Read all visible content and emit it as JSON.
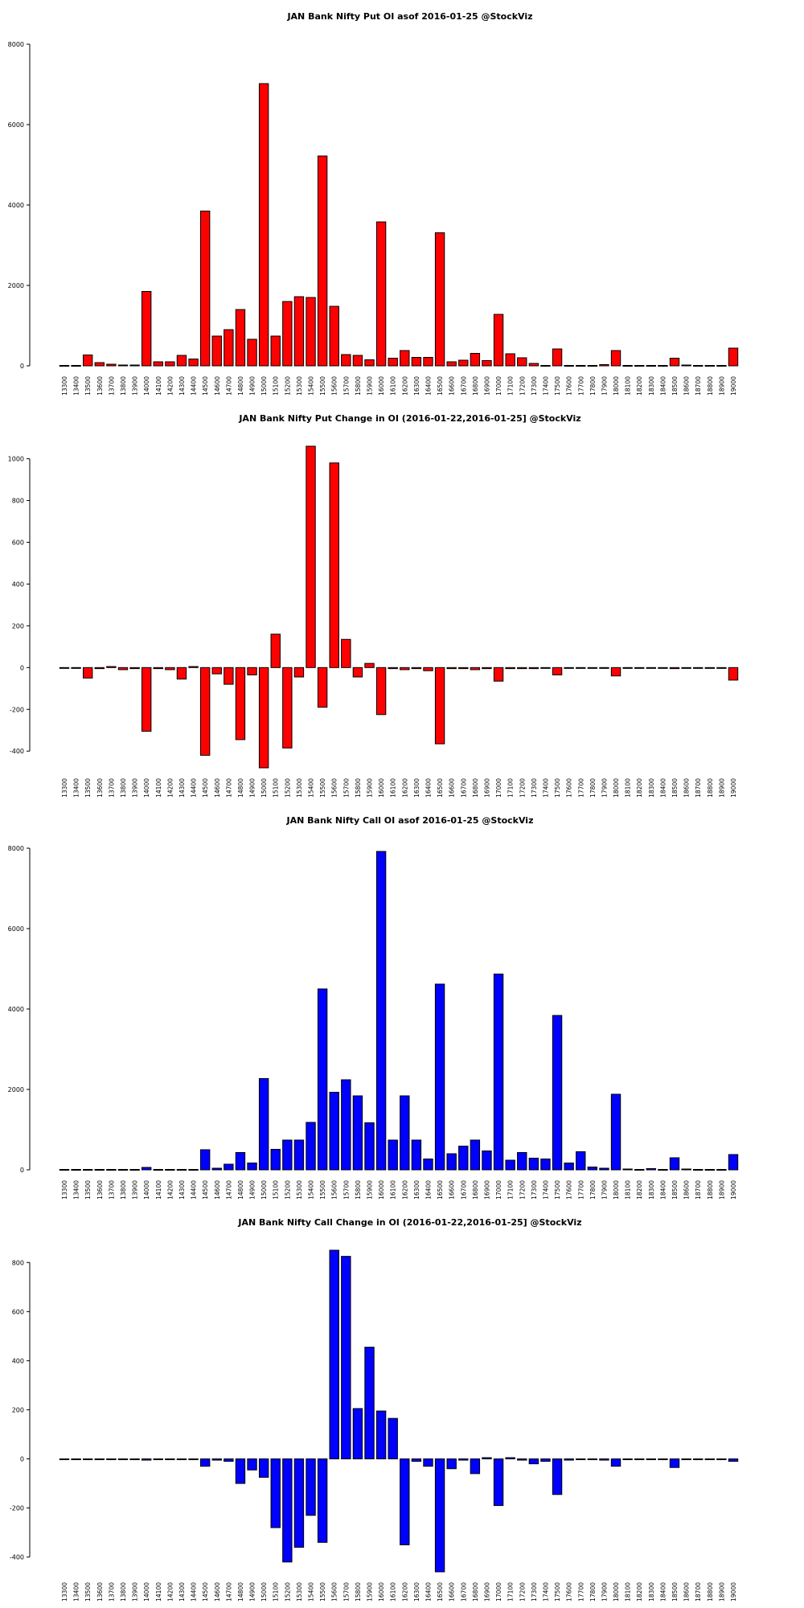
{
  "chart_data": [
    {
      "type": "bar",
      "title": "JAN Bank Nifty Put OI asof 2016-01-25 @StockViz",
      "color": "#ff0000",
      "categories": [
        "13300",
        "13400",
        "13500",
        "13600",
        "13700",
        "13800",
        "13900",
        "14000",
        "14100",
        "14200",
        "14300",
        "14400",
        "14500",
        "14600",
        "14700",
        "14800",
        "14900",
        "15000",
        "15100",
        "15200",
        "15300",
        "15400",
        "15500",
        "15600",
        "15700",
        "15800",
        "15900",
        "16000",
        "16100",
        "16200",
        "16300",
        "16400",
        "16500",
        "16600",
        "16700",
        "16800",
        "16900",
        "17000",
        "17100",
        "17200",
        "17300",
        "17400",
        "17500",
        "17600",
        "17700",
        "17800",
        "17900",
        "18000",
        "18100",
        "18200",
        "18300",
        "18400",
        "18500",
        "18600",
        "18700",
        "18800",
        "18900",
        "19000"
      ],
      "values": [
        10,
        10,
        270,
        80,
        40,
        20,
        20,
        1850,
        100,
        100,
        260,
        170,
        3850,
        740,
        900,
        1400,
        660,
        7020,
        740,
        1600,
        1720,
        1700,
        5220,
        1480,
        280,
        260,
        150,
        3580,
        190,
        380,
        210,
        210,
        3310,
        100,
        140,
        310,
        130,
        1280,
        300,
        200,
        60,
        10,
        420,
        10,
        10,
        10,
        30,
        380,
        10,
        10,
        10,
        10,
        190,
        20,
        10,
        10,
        10,
        440
      ],
      "yticks": [
        0,
        2000,
        4000,
        6000,
        8000
      ],
      "ylim": [
        0,
        8000
      ]
    },
    {
      "type": "bar",
      "title": "JAN Bank Nifty Put Change in OI (2016-01-22,2016-01-25] @StockViz",
      "color": "#ff0000",
      "categories": [
        "13300",
        "13400",
        "13500",
        "13600",
        "13700",
        "13800",
        "13900",
        "14000",
        "14100",
        "14200",
        "14300",
        "14400",
        "14500",
        "14600",
        "14700",
        "14800",
        "14900",
        "15000",
        "15100",
        "15200",
        "15300",
        "15400",
        "15500",
        "15600",
        "15700",
        "15800",
        "15900",
        "16000",
        "16100",
        "16200",
        "16300",
        "16400",
        "16500",
        "16600",
        "16700",
        "16800",
        "16900",
        "17000",
        "17100",
        "17200",
        "17300",
        "17400",
        "17500",
        "17600",
        "17700",
        "17800",
        "17900",
        "18000",
        "18100",
        "18200",
        "18300",
        "18400",
        "18500",
        "18600",
        "18700",
        "18800",
        "18900",
        "19000"
      ],
      "values": [
        0,
        0,
        -50,
        -5,
        5,
        -10,
        -5,
        -305,
        -5,
        -10,
        -55,
        5,
        -420,
        -30,
        -80,
        -345,
        -35,
        -480,
        160,
        -385,
        -45,
        1060,
        -190,
        980,
        135,
        -45,
        20,
        -225,
        -5,
        -10,
        -5,
        -15,
        -365,
        -5,
        -5,
        -10,
        -5,
        -65,
        -5,
        -5,
        -5,
        0,
        -35,
        0,
        0,
        0,
        0,
        -40,
        0,
        0,
        0,
        0,
        -5,
        0,
        0,
        0,
        0,
        -60
      ],
      "yticks": [
        -400,
        -200,
        0,
        200,
        400,
        600,
        800,
        1000
      ],
      "ylim": [
        -480,
        1060
      ]
    },
    {
      "type": "bar",
      "title": "JAN Bank Nifty Call OI asof 2016-01-25 @StockViz",
      "color": "#0000ff",
      "categories": [
        "13300",
        "13400",
        "13500",
        "13600",
        "13700",
        "13800",
        "13900",
        "14000",
        "14100",
        "14200",
        "14300",
        "14400",
        "14500",
        "14600",
        "14700",
        "14800",
        "14900",
        "15000",
        "15100",
        "15200",
        "15300",
        "15400",
        "15500",
        "15600",
        "15700",
        "15800",
        "15900",
        "16000",
        "16100",
        "16200",
        "16300",
        "16400",
        "16500",
        "16600",
        "16700",
        "16800",
        "16900",
        "17000",
        "17100",
        "17200",
        "17300",
        "17400",
        "17500",
        "17600",
        "17700",
        "17800",
        "17900",
        "18000",
        "18100",
        "18200",
        "18300",
        "18400",
        "18500",
        "18600",
        "18700",
        "18800",
        "18900",
        "19000"
      ],
      "values": [
        10,
        10,
        10,
        10,
        10,
        10,
        10,
        60,
        10,
        10,
        10,
        10,
        500,
        40,
        140,
        430,
        170,
        2270,
        510,
        740,
        740,
        1180,
        4500,
        1930,
        2240,
        1840,
        1170,
        7920,
        740,
        1840,
        740,
        270,
        4620,
        400,
        590,
        740,
        470,
        4870,
        240,
        430,
        290,
        270,
        3840,
        170,
        450,
        70,
        40,
        1880,
        20,
        10,
        30,
        10,
        300,
        20,
        10,
        10,
        10,
        380
      ],
      "yticks": [
        0,
        2000,
        4000,
        6000,
        8000
      ],
      "ylim": [
        0,
        8000
      ]
    },
    {
      "type": "bar",
      "title": "JAN Bank Nifty Call Change in OI (2016-01-22,2016-01-25] @StockViz",
      "color": "#0000ff",
      "categories": [
        "13300",
        "13400",
        "13500",
        "13600",
        "13700",
        "13800",
        "13900",
        "14000",
        "14100",
        "14200",
        "14300",
        "14400",
        "14500",
        "14600",
        "14700",
        "14800",
        "14900",
        "15000",
        "15100",
        "15200",
        "15300",
        "15400",
        "15500",
        "15600",
        "15700",
        "15800",
        "15900",
        "16000",
        "16100",
        "16200",
        "16300",
        "16400",
        "16500",
        "16600",
        "16700",
        "16800",
        "16900",
        "17000",
        "17100",
        "17200",
        "17300",
        "17400",
        "17500",
        "17600",
        "17700",
        "17800",
        "17900",
        "18000",
        "18100",
        "18200",
        "18300",
        "18400",
        "18500",
        "18600",
        "18700",
        "18800",
        "18900",
        "19000"
      ],
      "values": [
        0,
        0,
        0,
        0,
        0,
        0,
        0,
        -5,
        0,
        0,
        0,
        0,
        -30,
        -5,
        -10,
        -100,
        -45,
        -75,
        -280,
        -420,
        -360,
        -230,
        -340,
        850,
        825,
        205,
        455,
        195,
        165,
        -350,
        -10,
        -30,
        -460,
        -40,
        -5,
        -60,
        5,
        -190,
        5,
        -5,
        -20,
        -10,
        -145,
        -5,
        0,
        0,
        -5,
        -30,
        0,
        0,
        0,
        0,
        -35,
        0,
        0,
        0,
        0,
        -10
      ],
      "yticks": [
        -400,
        -200,
        0,
        200,
        400,
        600,
        800
      ],
      "ylim": [
        -460,
        850
      ]
    }
  ]
}
